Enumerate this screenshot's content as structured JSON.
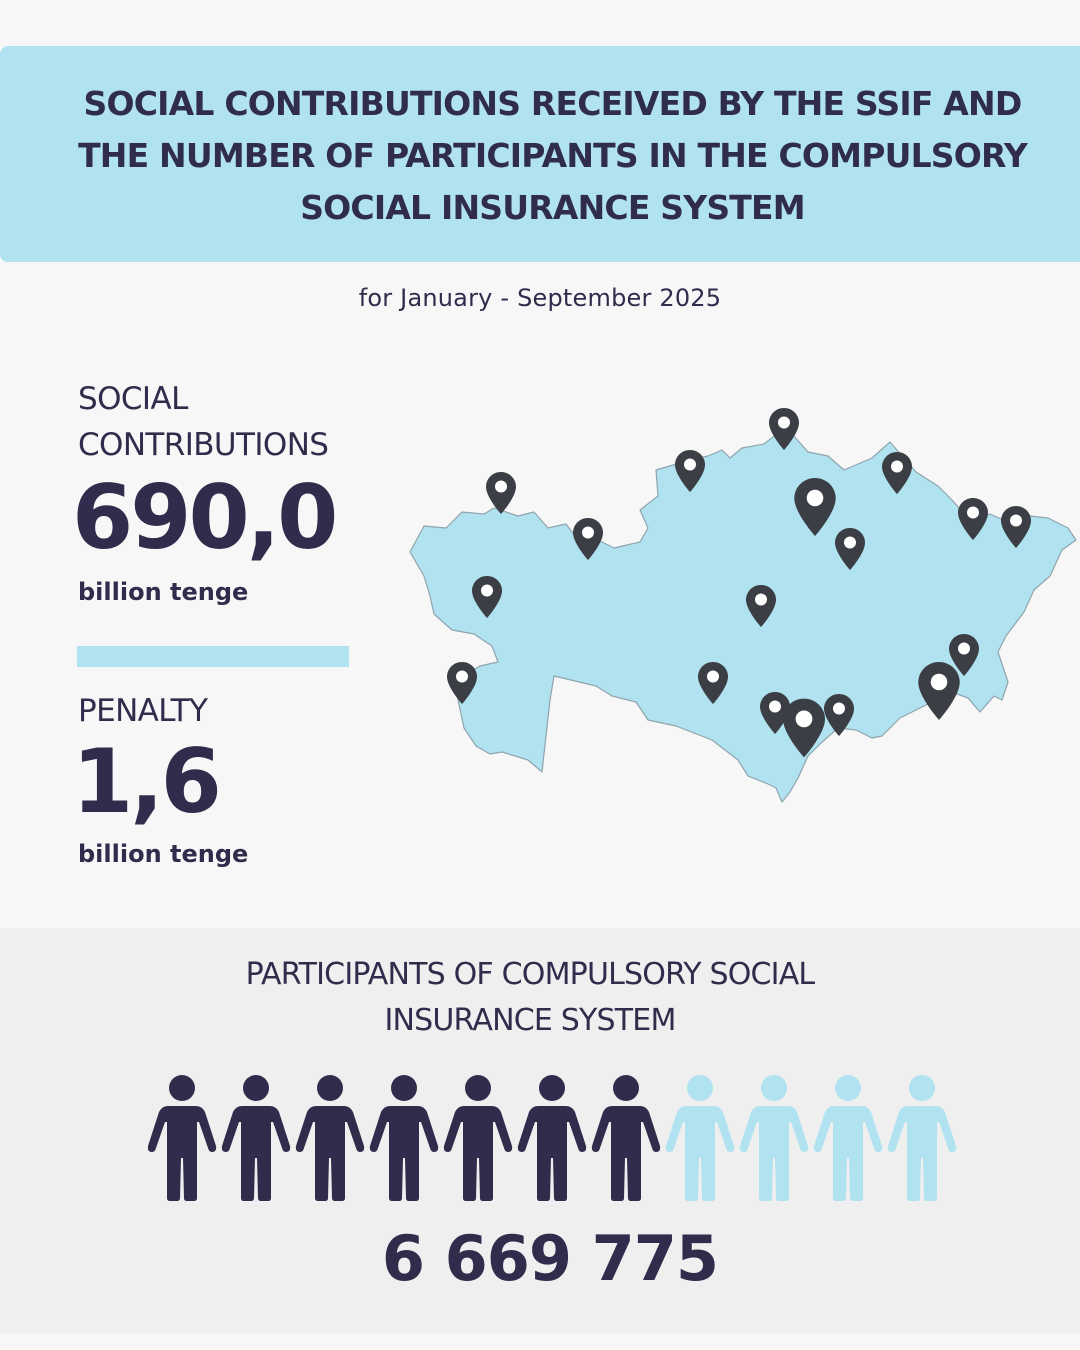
{
  "header": {
    "title": "SOCIAL CONTRIBUTIONS RECEIVED BY THE SSIF AND THE NUMBER OF PARTICIPANTS IN THE COMPULSORY SOCIAL INSURANCE SYSTEM",
    "period": "for January - September 2025"
  },
  "contributions": {
    "label_line1": "SOCIAL",
    "label_line2": "CONTRIBUTIONS",
    "value": "690,0",
    "unit": "billion tenge"
  },
  "penalty": {
    "label": "PENALTY",
    "value": "1,6",
    "unit": "billion tenge"
  },
  "map": {
    "icon": "kazakhstan-map",
    "pin_icon": "map-pin-icon",
    "fill_color": "#b1e2f0",
    "pin_color": "#3b3e44"
  },
  "participants": {
    "title_line1": "PARTICIPANTS OF COMPULSORY SOCIAL",
    "title_line2": "INSURANCE SYSTEM",
    "total": "6 669 775",
    "icon": "person-icon",
    "icons_total": 11,
    "icons_filled": 7,
    "filled_color": "#302c4b",
    "empty_color": "#b1e2f0"
  },
  "colors": {
    "accent": "#b1e2f0",
    "text": "#302c4b",
    "background": "#f7f7f7"
  }
}
